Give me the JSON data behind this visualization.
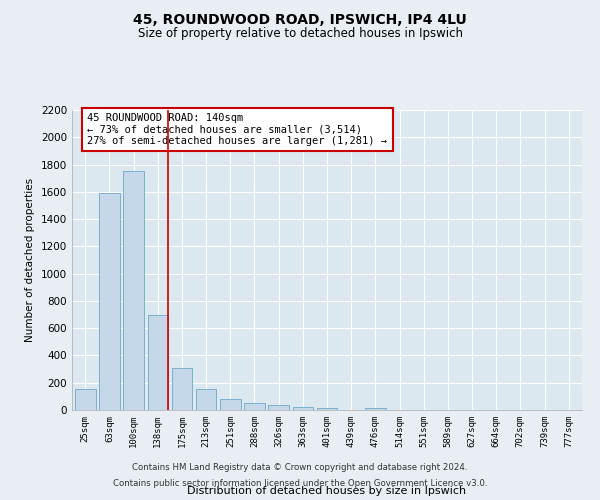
{
  "title": "45, ROUNDWOOD ROAD, IPSWICH, IP4 4LU",
  "subtitle": "Size of property relative to detached houses in Ipswich",
  "xlabel": "Distribution of detached houses by size in Ipswich",
  "ylabel": "Number of detached properties",
  "bar_labels": [
    "25sqm",
    "63sqm",
    "100sqm",
    "138sqm",
    "175sqm",
    "213sqm",
    "251sqm",
    "288sqm",
    "326sqm",
    "363sqm",
    "401sqm",
    "439sqm",
    "476sqm",
    "514sqm",
    "551sqm",
    "589sqm",
    "627sqm",
    "664sqm",
    "702sqm",
    "739sqm",
    "777sqm"
  ],
  "bar_values": [
    155,
    1590,
    1750,
    700,
    310,
    155,
    80,
    50,
    35,
    20,
    15,
    0,
    15,
    0,
    0,
    0,
    0,
    0,
    0,
    0,
    0
  ],
  "highlight_bar_index": 3,
  "bar_color": "#c5d8ea",
  "bar_edge_color": "#6fa8c8",
  "highlight_line_color": "#cc0000",
  "annotation_text": "45 ROUNDWOOD ROAD: 140sqm\n← 73% of detached houses are smaller (3,514)\n27% of semi-detached houses are larger (1,281) →",
  "annotation_box_color": "#ffffff",
  "annotation_box_edge": "#cc0000",
  "ylim": [
    0,
    2200
  ],
  "yticks": [
    0,
    200,
    400,
    600,
    800,
    1000,
    1200,
    1400,
    1600,
    1800,
    2000,
    2200
  ],
  "footer_line1": "Contains HM Land Registry data © Crown copyright and database right 2024.",
  "footer_line2": "Contains public sector information licensed under the Open Government Licence v3.0.",
  "bg_color": "#e8eef4",
  "grid_color": "#ffffff",
  "plot_bg_color": "#dce8f0"
}
